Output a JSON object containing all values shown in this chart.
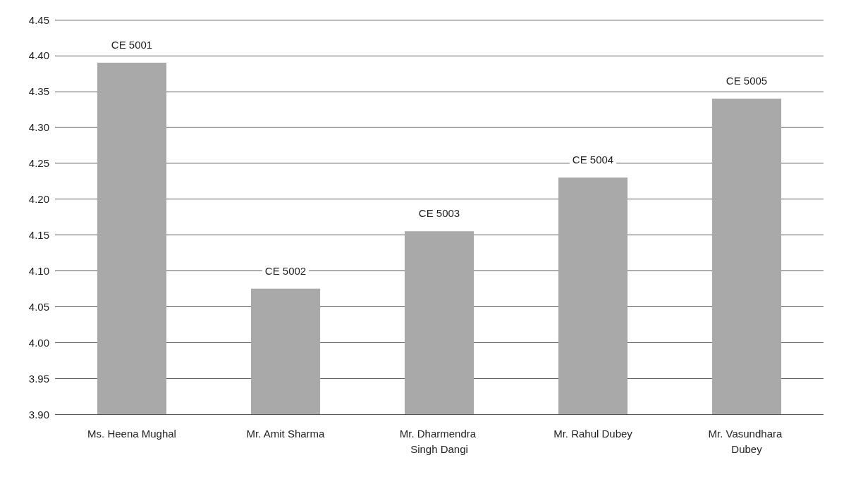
{
  "chart_data": {
    "type": "bar",
    "categories": [
      "Ms. Heena Mughal",
      "Mr. Amit Sharma",
      "Mr. Dharmendra Singh Dangi",
      "Mr. Rahul Dubey",
      "Mr. Vasundhara Dubey"
    ],
    "values": [
      4.39,
      4.075,
      4.155,
      4.23,
      4.34
    ],
    "value_labels": [
      "CE 5001",
      "CE 5002",
      "CE 5003",
      "CE 5004",
      "CE 5005"
    ],
    "color": "#a9a9a9",
    "ylim": [
      3.9,
      4.45
    ],
    "yticks": [
      {
        "value": 3.9,
        "label": "3.90"
      },
      {
        "value": 3.95,
        "label": "3.95"
      },
      {
        "value": 4.0,
        "label": "4.00"
      },
      {
        "value": 4.05,
        "label": "4.05"
      },
      {
        "value": 4.1,
        "label": "4.10"
      },
      {
        "value": 4.15,
        "label": "4.15"
      },
      {
        "value": 4.2,
        "label": "4.20"
      },
      {
        "value": 4.25,
        "label": "4.25"
      },
      {
        "value": 4.3,
        "label": "4.30"
      },
      {
        "value": 4.35,
        "label": "4.35"
      },
      {
        "value": 4.4,
        "label": "4.40"
      },
      {
        "value": 4.45,
        "label": "4.45"
      }
    ],
    "grid": "y"
  }
}
